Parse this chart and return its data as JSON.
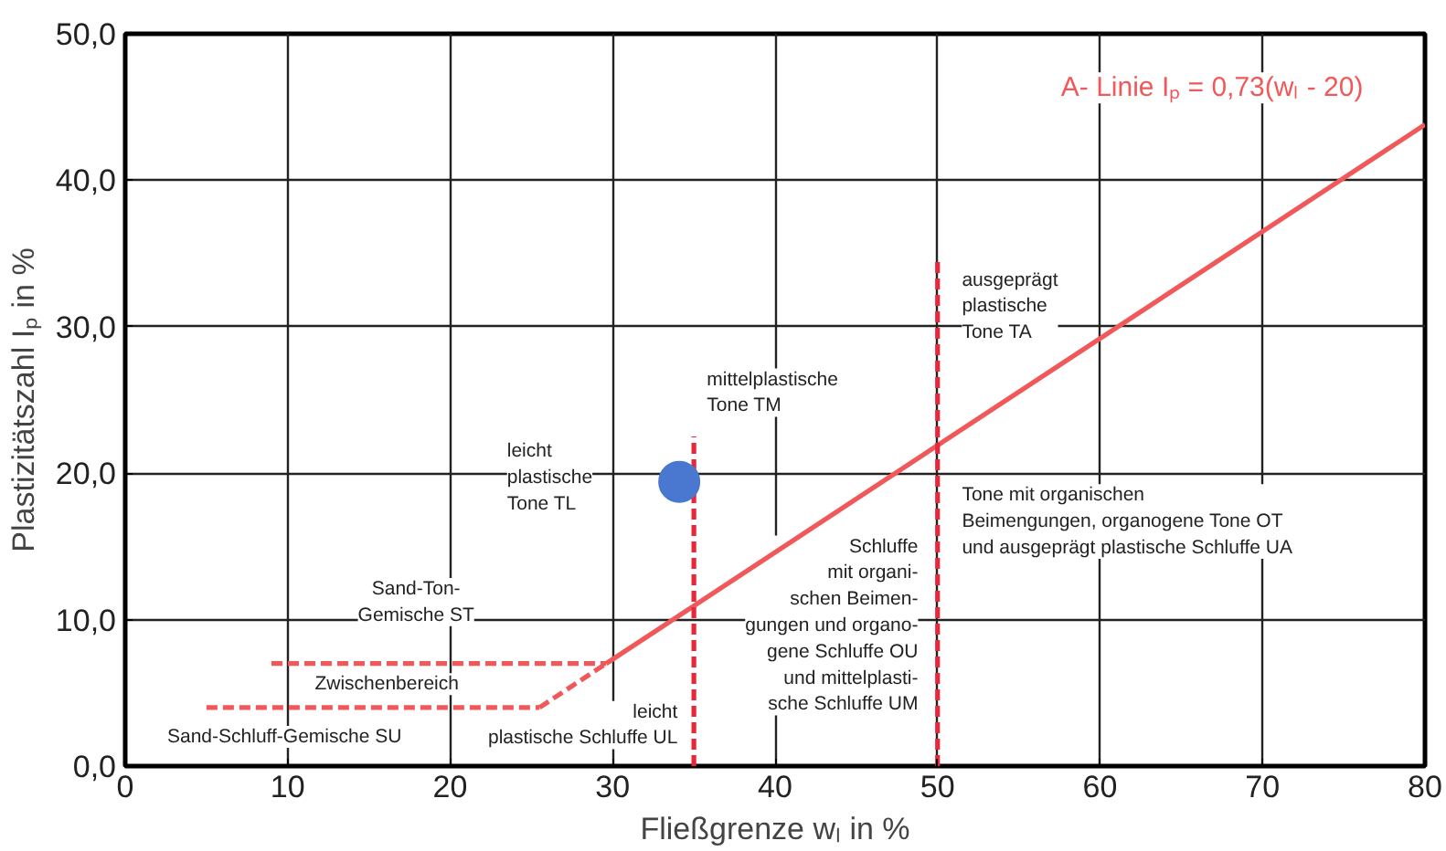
{
  "chart_data": {
    "type": "line",
    "xlabel": "Fließgrenze wₗ in %",
    "ylabel": "Plastizitätszahl Iₚ in %",
    "xlim": [
      0,
      80
    ],
    "ylim": [
      0,
      50
    ],
    "xticks": [
      0,
      10,
      20,
      30,
      40,
      50,
      60,
      70,
      80
    ],
    "yticks": [
      {
        "value": 0,
        "label": "0,0"
      },
      {
        "value": 10,
        "label": "10,0"
      },
      {
        "value": 20,
        "label": "20,0"
      },
      {
        "value": 30,
        "label": "30,0"
      },
      {
        "value": 40,
        "label": "40,0"
      },
      {
        "value": 50,
        "label": "50,0"
      }
    ],
    "grid": true,
    "series": [
      {
        "line_style": "solid",
        "color": "#f0585a",
        "x": [
          29.6,
          80
        ],
        "values": [
          7.0,
          43.8
        ]
      },
      {
        "line_style": "dashed",
        "color": "#f0585a",
        "x": [
          25.5,
          29.6
        ],
        "values": [
          4.0,
          7.0
        ]
      },
      {
        "line_style": "dashed",
        "color": "#f0585a",
        "x": [
          9,
          29.6
        ],
        "values": [
          7,
          7
        ]
      },
      {
        "line_style": "dashed",
        "color": "#f0585a",
        "x": [
          5,
          25.5
        ],
        "values": [
          4,
          4
        ]
      },
      {
        "line_style": "dashed",
        "color": "#e8283a",
        "x": [
          35,
          35
        ],
        "values": [
          0,
          22.5
        ]
      },
      {
        "line_style": "dashed",
        "color": "#e8283a",
        "x": [
          50,
          50
        ],
        "values": [
          0,
          34.5
        ]
      },
      {
        "type": "scatter",
        "marker": "circle",
        "color": "#4a78d0",
        "x": [
          34.1
        ],
        "values": [
          19.4
        ]
      }
    ],
    "annotations": [
      "A- Linie Iₚ = 0,73(wₗ - 20)",
      "mittelplastische\nTone TM",
      "leicht\nplastische\nTone TL",
      "ausgeprägt\nplastische\nTone TA",
      "Tone mit organischen\nBeimengungen, organogene Tone OT\nund ausgeprägt plastische Schluffe UA",
      "Schluffe\nmit organi-\nschen Beimen-\ngungen und organo-\ngene Schluffe OU\nund mittelplasti-\nsche Schluffe UM",
      "Sand-Ton-\nGemische ST",
      "Zwischenbereich",
      "Sand-Schluff-Gemische SU",
      "leicht\nplastische Schluffe UL"
    ]
  }
}
